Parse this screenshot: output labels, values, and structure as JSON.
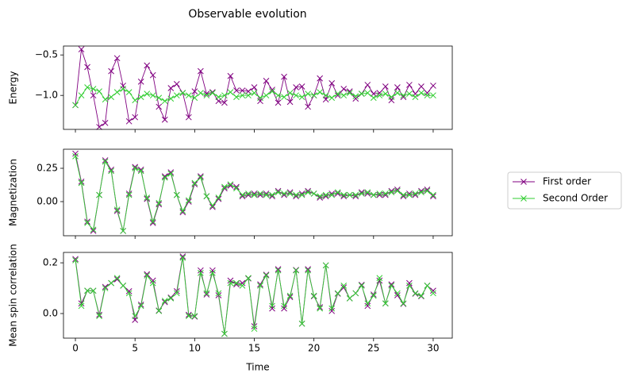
{
  "title": "Observable evolution",
  "chart_data": [
    {
      "type": "line",
      "ylabel": "Energy",
      "xlim": [
        -1.0,
        31.6
      ],
      "xticks": [
        0,
        5,
        10,
        15,
        20,
        25,
        30
      ],
      "ylim": [
        -1.42,
        -0.39
      ],
      "yticks": [
        {
          "value": -1.0,
          "label": "−1.0"
        },
        {
          "value": -0.5,
          "label": "−0.5"
        }
      ],
      "x": [
        0,
        0.5,
        1,
        1.5,
        2,
        2.5,
        3,
        3.5,
        4,
        4.5,
        5,
        5.5,
        6,
        6.5,
        7,
        7.5,
        8,
        8.5,
        9,
        9.5,
        10,
        10.5,
        11,
        11.5,
        12,
        12.5,
        13,
        13.5,
        14,
        14.5,
        15,
        15.5,
        16,
        16.5,
        17,
        17.5,
        18,
        18.5,
        19,
        19.5,
        20,
        20.5,
        21,
        21.5,
        22,
        22.5,
        23,
        23.5,
        24,
        24.5,
        25,
        25.5,
        26,
        26.5,
        27,
        27.5,
        28,
        28.5,
        29,
        29.5,
        30
      ],
      "series": [
        {
          "name": "First order",
          "color": "#800080",
          "values": [
            -1.12,
            -0.43,
            -0.65,
            -1.0,
            -1.39,
            -1.34,
            -0.7,
            -0.54,
            -0.88,
            -1.32,
            -1.27,
            -0.83,
            -0.63,
            -0.75,
            -1.14,
            -1.3,
            -0.91,
            -0.86,
            -0.97,
            -1.27,
            -0.95,
            -0.7,
            -0.98,
            -0.96,
            -1.07,
            -1.09,
            -0.76,
            -0.94,
            -0.94,
            -0.95,
            -0.9,
            -1.07,
            -0.82,
            -0.93,
            -1.09,
            -0.77,
            -1.08,
            -0.9,
            -0.89,
            -1.14,
            -1.0,
            -0.79,
            -1.05,
            -0.85,
            -1.0,
            -0.92,
            -0.95,
            -1.04,
            -0.98,
            -0.87,
            -0.98,
            -0.97,
            -0.89,
            -1.06,
            -0.9,
            -1.02,
            -0.87,
            -0.98,
            -0.89,
            -0.97,
            -0.88
          ]
        },
        {
          "name": "Second Order",
          "color": "#32cd32",
          "values": [
            -1.12,
            -1.0,
            -0.9,
            -0.92,
            -0.95,
            -1.05,
            -1.02,
            -0.96,
            -0.92,
            -0.96,
            -1.06,
            -1.02,
            -0.98,
            -1.0,
            -1.03,
            -1.07,
            -1.04,
            -1.0,
            -0.97,
            -1.0,
            -1.03,
            -0.97,
            -1.0,
            -0.97,
            -1.02,
            -1.0,
            -0.96,
            -1.02,
            -1.0,
            -1.0,
            -0.97,
            -1.03,
            -1.0,
            -0.95,
            -1.0,
            -1.02,
            -0.97,
            -1.0,
            -1.02,
            -0.98,
            -1.0,
            -0.96,
            -1.0,
            -1.03,
            -0.98,
            -1.0,
            -0.97,
            -1.01,
            -0.98,
            -0.97,
            -1.03,
            -1.0,
            -0.98,
            -1.02,
            -0.97,
            -1.0,
            -0.98,
            -1.02,
            -0.97,
            -1.0,
            -1.0
          ]
        }
      ]
    },
    {
      "type": "line",
      "ylabel": "Magnetization",
      "xlim": [
        -1.0,
        31.6
      ],
      "xticks": [
        0,
        5,
        10,
        15,
        20,
        25,
        30
      ],
      "ylim": [
        -0.256,
        0.393
      ],
      "yticks": [
        {
          "value": 0,
          "label": "0.00"
        },
        0.25
      ],
      "x": [
        0,
        0.5,
        1,
        1.5,
        2,
        2.5,
        3,
        3.5,
        4,
        4.5,
        5,
        5.5,
        6,
        6.5,
        7,
        7.5,
        8,
        8.5,
        9,
        9.5,
        10,
        10.5,
        11,
        11.5,
        12,
        12.5,
        13,
        13.5,
        14,
        14.5,
        15,
        15.5,
        16,
        16.5,
        17,
        17.5,
        18,
        18.5,
        19,
        19.5,
        20,
        20.5,
        21,
        21.5,
        22,
        22.5,
        23,
        23.5,
        24,
        24.5,
        25,
        25.5,
        26,
        26.5,
        27,
        27.5,
        28,
        28.5,
        29,
        29.5,
        30
      ],
      "series": [
        {
          "name": "First order",
          "color": "#800080",
          "values": [
            0.36,
            0.15,
            -0.15,
            -0.22,
            0.05,
            0.31,
            0.24,
            -0.07,
            -0.22,
            0.06,
            0.26,
            0.24,
            0.02,
            -0.16,
            -0.02,
            0.19,
            0.22,
            0.05,
            -0.08,
            0.0,
            0.13,
            0.19,
            0.04,
            -0.04,
            0.02,
            0.1,
            0.12,
            0.11,
            0.04,
            0.05,
            0.06,
            0.05,
            0.06,
            0.04,
            0.08,
            0.05,
            0.07,
            0.04,
            0.06,
            0.08,
            0.06,
            0.03,
            0.04,
            0.06,
            0.06,
            0.04,
            0.05,
            0.04,
            0.07,
            0.06,
            0.05,
            0.05,
            0.05,
            0.08,
            0.09,
            0.04,
            0.06,
            0.05,
            0.08,
            0.09,
            0.04
          ]
        },
        {
          "name": "Second Order",
          "color": "#32cd32",
          "values": [
            0.34,
            0.14,
            -0.16,
            -0.21,
            0.05,
            0.3,
            0.23,
            -0.06,
            -0.22,
            0.05,
            0.25,
            0.23,
            0.03,
            -0.15,
            -0.01,
            0.18,
            0.21,
            0.05,
            -0.07,
            0.01,
            0.14,
            0.18,
            0.04,
            -0.03,
            0.03,
            0.11,
            0.13,
            0.1,
            0.05,
            0.06,
            0.05,
            0.06,
            0.05,
            0.05,
            0.07,
            0.06,
            0.06,
            0.05,
            0.05,
            0.07,
            0.06,
            0.04,
            0.05,
            0.05,
            0.07,
            0.05,
            0.05,
            0.05,
            0.06,
            0.07,
            0.05,
            0.06,
            0.06,
            0.07,
            0.08,
            0.05,
            0.05,
            0.06,
            0.07,
            0.08,
            0.05
          ]
        }
      ]
    },
    {
      "type": "line",
      "ylabel": "Mean spin correlation",
      "xlabel": "Time",
      "xlim": [
        -1.0,
        31.6
      ],
      "xticks": [
        0,
        5,
        10,
        15,
        20,
        25,
        30
      ],
      "ylim": [
        -0.097,
        0.241
      ],
      "yticks": [
        {
          "value": 0,
          "label": "0.0"
        },
        0.2
      ],
      "x": [
        0,
        0.5,
        1,
        1.5,
        2,
        2.5,
        3,
        3.5,
        4,
        4.5,
        5,
        5.5,
        6,
        6.5,
        7,
        7.5,
        8,
        8.5,
        9,
        9.5,
        10,
        10.5,
        11,
        11.5,
        12,
        12.5,
        13,
        13.5,
        14,
        14.5,
        15,
        15.5,
        16,
        16.5,
        17,
        17.5,
        18,
        18.5,
        19,
        19.5,
        20,
        20.5,
        21,
        21.5,
        22,
        22.5,
        23,
        23.5,
        24,
        24.5,
        25,
        25.5,
        26,
        26.5,
        27,
        27.5,
        28,
        28.5,
        29,
        29.5,
        30
      ],
      "series": [
        {
          "name": "First order",
          "color": "#800080",
          "values": [
            0.215,
            0.04,
            0.09,
            0.09,
            -0.005,
            0.105,
            0.12,
            0.135,
            0.11,
            0.088,
            -0.025,
            0.035,
            0.155,
            0.13,
            0.012,
            0.045,
            0.063,
            0.088,
            0.225,
            -0.005,
            -0.012,
            0.17,
            0.075,
            0.17,
            0.072,
            -0.08,
            0.13,
            0.115,
            0.12,
            0.138,
            -0.05,
            0.115,
            0.153,
            0.02,
            0.175,
            0.02,
            0.065,
            0.172,
            -0.04,
            0.175,
            0.068,
            0.025,
            0.19,
            0.01,
            0.078,
            0.103,
            0.06,
            0.08,
            0.113,
            0.03,
            0.075,
            0.13,
            0.04,
            0.115,
            0.072,
            0.038,
            0.12,
            0.078,
            0.068,
            0.11,
            0.09
          ]
        },
        {
          "name": "Second Order",
          "color": "#32cd32",
          "values": [
            0.21,
            0.03,
            0.09,
            0.09,
            -0.01,
            0.1,
            0.12,
            0.14,
            0.11,
            0.08,
            -0.01,
            0.03,
            0.15,
            0.12,
            0.01,
            0.05,
            0.06,
            0.08,
            0.22,
            -0.01,
            -0.01,
            0.16,
            0.08,
            0.16,
            0.08,
            -0.08,
            0.12,
            0.12,
            0.11,
            0.14,
            -0.06,
            0.11,
            0.15,
            0.03,
            0.17,
            0.03,
            0.07,
            0.17,
            -0.04,
            0.17,
            0.07,
            0.02,
            0.19,
            0.02,
            0.08,
            0.11,
            0.06,
            0.08,
            0.11,
            0.04,
            0.07,
            0.14,
            0.04,
            0.11,
            0.08,
            0.04,
            0.11,
            0.08,
            0.07,
            0.11,
            0.08
          ]
        }
      ]
    }
  ]
}
